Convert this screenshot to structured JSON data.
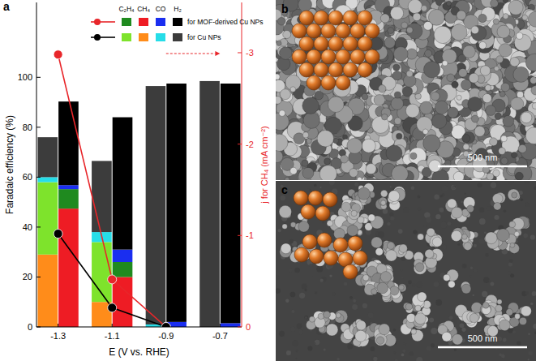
{
  "chart_data": {
    "type": "bar",
    "label": "a",
    "stacked": true,
    "legend": "top-right",
    "grid": false,
    "x_label": "E (V vs. RHE)",
    "y_label": "Faradaic efficiency (%)",
    "y2_label": "j for CH₄ (mA cm⁻²)",
    "categories": [
      "-1.3",
      "-1.1",
      "-0.9",
      "-0.7"
    ],
    "ylim": [
      0,
      130
    ],
    "yticks": [
      0,
      20,
      40,
      60,
      80,
      100
    ],
    "y2lim": [
      0,
      -3.55
    ],
    "y2ticks": [
      0,
      -1,
      -2,
      -3
    ],
    "species": [
      "C₂H₄",
      "CH₄",
      "CO",
      "H₂"
    ],
    "groups": [
      {
        "name": "for MOF-derived Cu NPs",
        "colors": [
          "#1f8a1f",
          "#ee1c24",
          "#1a2ef0",
          "#000000"
        ],
        "values": [
          [
            7.8,
            6,
            0,
            0
          ],
          [
            47.4,
            20,
            0,
            0
          ],
          [
            1.6,
            5,
            2,
            1.5
          ],
          [
            33.5,
            53,
            95.5,
            96
          ]
        ],
        "line": {
          "type": "line",
          "axis": "y2",
          "color": "#e8262a",
          "marker": "circle",
          "values": [
            -2.98,
            -0.52,
            0,
            null
          ]
        }
      },
      {
        "name": "for Cu NPs",
        "colors": [
          "#7ee32c",
          "#ff8c1a",
          "#26dde8",
          "#3c3c3c"
        ],
        "values": [
          [
            29,
            24,
            0,
            0
          ],
          [
            29,
            10,
            0,
            0
          ],
          [
            2,
            4,
            1,
            0
          ],
          [
            16,
            28.5,
            95.5,
            98.5
          ]
        ],
        "line": {
          "type": "line",
          "axis": "y2",
          "color": "#000000",
          "marker": "circle",
          "values": [
            -1.02,
            -0.21,
            0,
            null
          ]
        }
      }
    ]
  },
  "images": [
    {
      "label": "b",
      "scale_bar": "500 nm"
    },
    {
      "label": "c",
      "scale_bar": "500 nm"
    }
  ]
}
